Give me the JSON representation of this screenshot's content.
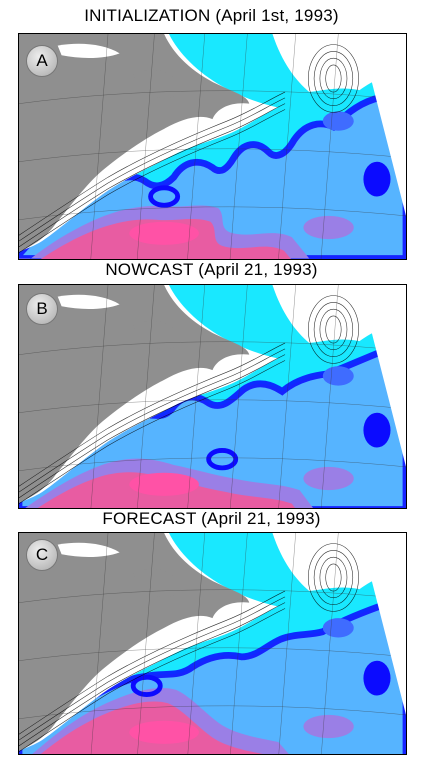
{
  "panels": [
    {
      "letter": "A",
      "title": "INITIALIZATION (April 1st, 1993)"
    },
    {
      "letter": "B",
      "title": "NOWCAST (April 21, 1993)"
    },
    {
      "letter": "C",
      "title": "FORECAST (April 21, 1993)"
    }
  ],
  "colors": {
    "land": "#8f8f8f",
    "shelf": "#ffffff",
    "slope_water": "#19e8ff",
    "transition": "#56b4ff",
    "mid_water": "#3f6cff",
    "deep_blue": "#0b0bff",
    "lavender": "#9a7fe6",
    "warm_core": "#e85ca2",
    "hot_pink": "#ff52a6",
    "contour": "#000000",
    "grid": "#333333"
  }
}
